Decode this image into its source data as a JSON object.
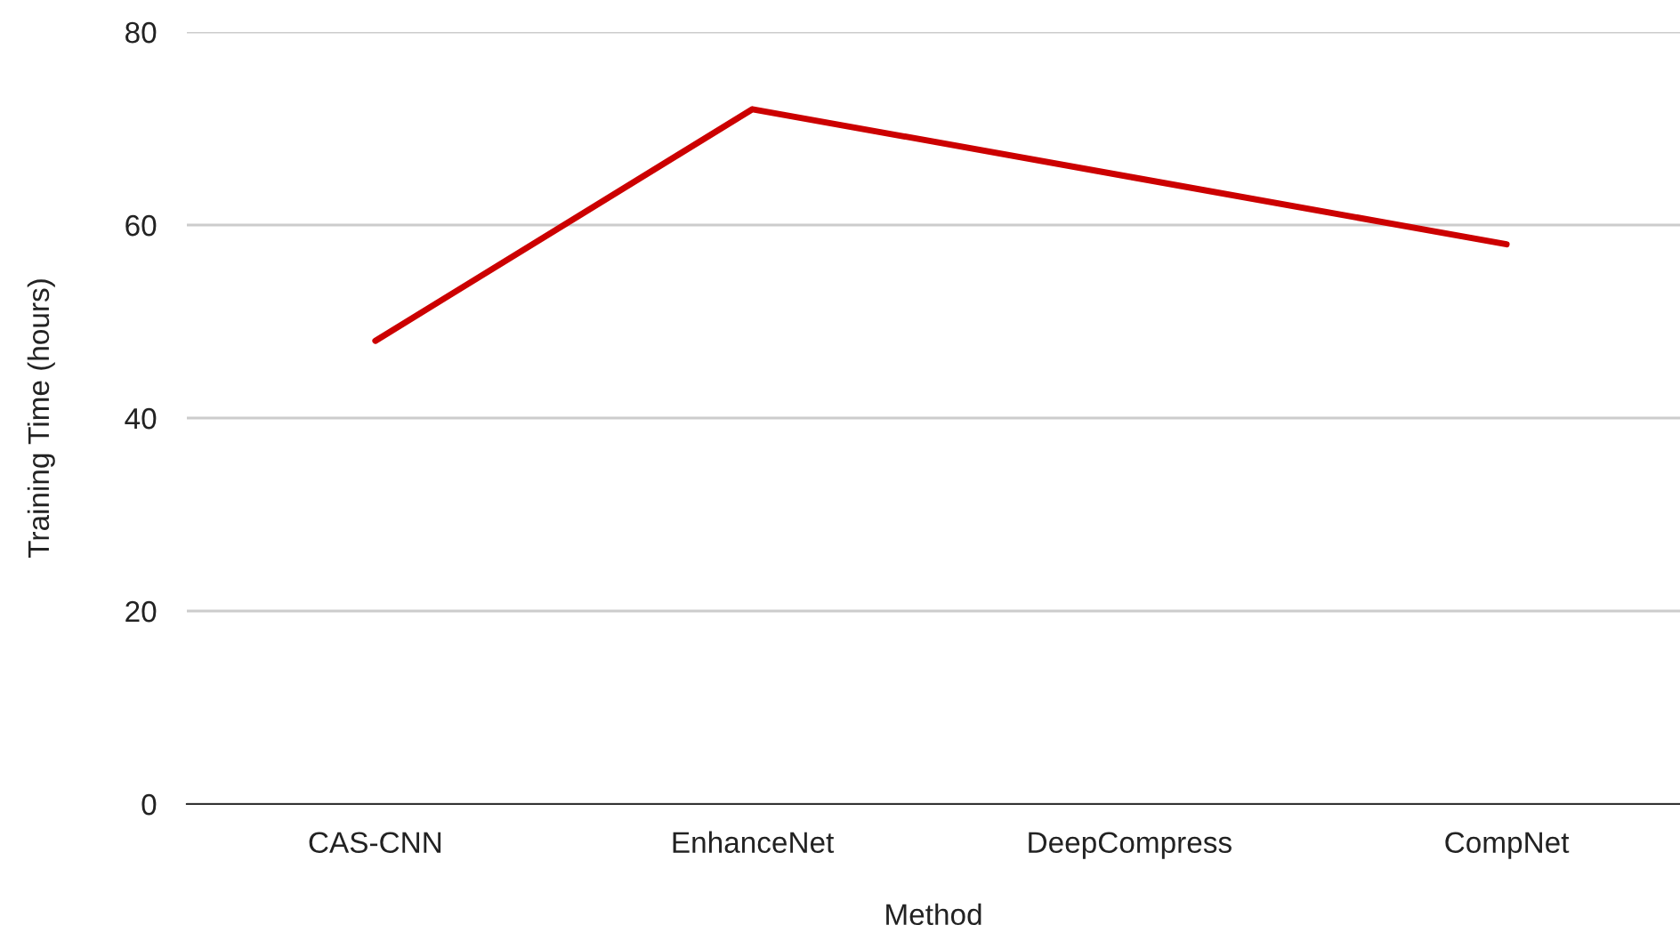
{
  "chart_data": {
    "type": "line",
    "xlabel": "Method",
    "ylabel": "Training Time (hours)",
    "categories": [
      "CAS-CNN",
      "EnhanceNet",
      "DeepCompress",
      "CompNet"
    ],
    "series": [
      {
        "color": "#cc0000",
        "values": [
          48,
          72,
          65,
          58
        ]
      }
    ],
    "ylim": [
      0,
      80
    ],
    "yticks": [
      0,
      20,
      40,
      60,
      80
    ],
    "grid": "y",
    "marker": "none",
    "line_style": "solid"
  }
}
